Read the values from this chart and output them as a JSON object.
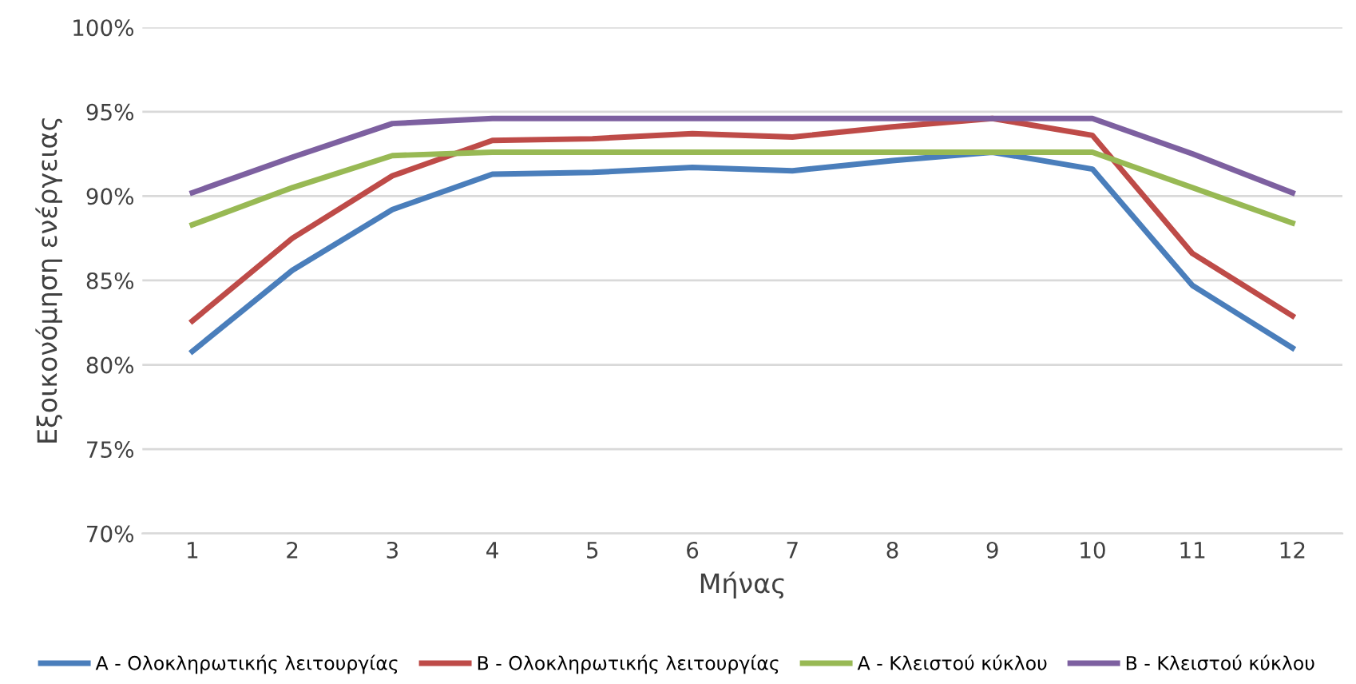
{
  "chart_data": {
    "type": "line",
    "xlabel": "Μήνας",
    "ylabel": "Εξοικονόμηση ενέργειας",
    "categories": [
      "1",
      "2",
      "3",
      "4",
      "5",
      "6",
      "7",
      "8",
      "9",
      "10",
      "11",
      "12"
    ],
    "series": [
      {
        "name": "Α - Ολοκληρωτικής λειτουργίας",
        "color": "#4a7ebb",
        "values": [
          80.8,
          85.6,
          89.2,
          91.3,
          91.4,
          91.7,
          91.5,
          92.1,
          92.6,
          91.6,
          84.7,
          81.0
        ]
      },
      {
        "name": "Β - Ολοκληρωτικής λειτουργίας",
        "color": "#be4b48",
        "values": [
          82.6,
          87.5,
          91.2,
          93.3,
          93.4,
          93.7,
          93.5,
          94.1,
          94.6,
          93.6,
          86.6,
          82.9
        ]
      },
      {
        "name": "Α - Κλειστού κύκλου",
        "color": "#98b954",
        "values": [
          88.3,
          90.5,
          92.4,
          92.6,
          92.6,
          92.6,
          92.6,
          92.6,
          92.6,
          92.6,
          90.5,
          88.4
        ]
      },
      {
        "name": "Β - Κλειστού κύκλου",
        "color": "#7d60a0",
        "values": [
          90.2,
          92.3,
          94.3,
          94.6,
          94.6,
          94.6,
          94.6,
          94.6,
          94.6,
          94.6,
          92.5,
          90.2
        ]
      }
    ],
    "ylim": [
      70,
      100
    ],
    "yticks": [
      {
        "value": 70,
        "label": "70%"
      },
      {
        "value": 75,
        "label": "75%"
      },
      {
        "value": 80,
        "label": "80%"
      },
      {
        "value": 85,
        "label": "85%"
      },
      {
        "value": 90,
        "label": "90%"
      },
      {
        "value": 95,
        "label": "95%"
      },
      {
        "value": 100,
        "label": "100%"
      }
    ],
    "grid": "y",
    "legend": "bottom",
    "marker": "none",
    "line_style": "solid"
  }
}
